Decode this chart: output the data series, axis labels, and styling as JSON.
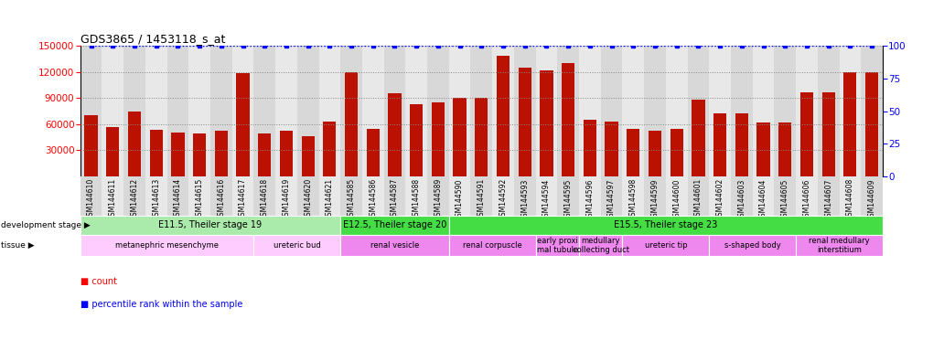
{
  "title": "GDS3865 / 1453118_s_at",
  "samples": [
    "GSM144610",
    "GSM144611",
    "GSM144612",
    "GSM144613",
    "GSM144614",
    "GSM144615",
    "GSM144616",
    "GSM144617",
    "GSM144618",
    "GSM144619",
    "GSM144620",
    "GSM144621",
    "GSM144585",
    "GSM144586",
    "GSM144587",
    "GSM144588",
    "GSM144589",
    "GSM144590",
    "GSM144591",
    "GSM144592",
    "GSM144593",
    "GSM144594",
    "GSM144595",
    "GSM144596",
    "GSM144597",
    "GSM144598",
    "GSM144599",
    "GSM144600",
    "GSM144601",
    "GSM144602",
    "GSM144603",
    "GSM144604",
    "GSM144605",
    "GSM144606",
    "GSM144607",
    "GSM144608",
    "GSM144609"
  ],
  "counts": [
    70000,
    57000,
    75000,
    53000,
    50000,
    49000,
    52000,
    118000,
    49000,
    52000,
    46000,
    63000,
    120000,
    55000,
    95000,
    83000,
    85000,
    90000,
    90000,
    138000,
    125000,
    122000,
    130000,
    65000,
    63000,
    55000,
    52000,
    55000,
    88000,
    72000,
    72000,
    62000,
    62000,
    97000,
    96000,
    120000,
    120000
  ],
  "ylim_left": [
    0,
    150000
  ],
  "ylim_right": [
    0,
    100
  ],
  "yticks_left": [
    30000,
    60000,
    90000,
    120000,
    150000
  ],
  "yticks_right": [
    0,
    25,
    50,
    75,
    100
  ],
  "bar_color": "#bb1100",
  "percentile_color": "#0000cc",
  "grid_color": "#888888",
  "dev_stages": [
    {
      "label": "E11.5, Theiler stage 19",
      "start": 0,
      "end": 11,
      "color": "#aaeaaa"
    },
    {
      "label": "E12.5, Theiler stage 20",
      "start": 12,
      "end": 16,
      "color": "#44dd44"
    },
    {
      "label": "E15.5, Theiler stage 23",
      "start": 17,
      "end": 36,
      "color": "#44dd44"
    }
  ],
  "tissues": [
    {
      "label": "metanephric mesenchyme",
      "start": 0,
      "end": 7,
      "color": "#ffccff"
    },
    {
      "label": "ureteric bud",
      "start": 8,
      "end": 11,
      "color": "#ffccff"
    },
    {
      "label": "renal vesicle",
      "start": 12,
      "end": 16,
      "color": "#ee88ee"
    },
    {
      "label": "renal corpuscle",
      "start": 17,
      "end": 20,
      "color": "#ee88ee"
    },
    {
      "label": "early proxi\nmal tubule",
      "start": 21,
      "end": 22,
      "color": "#ee88ee"
    },
    {
      "label": "medullary\ncollecting duct",
      "start": 23,
      "end": 24,
      "color": "#ee88ee"
    },
    {
      "label": "ureteric tip",
      "start": 25,
      "end": 28,
      "color": "#ee88ee"
    },
    {
      "label": "s-shaped body",
      "start": 29,
      "end": 32,
      "color": "#ee88ee"
    },
    {
      "label": "renal medullary\ninterstitium",
      "start": 33,
      "end": 36,
      "color": "#ee88ee"
    }
  ],
  "col_bg_even": "#d8d8d8",
  "col_bg_odd": "#e8e8e8",
  "bg_color": "#ffffff",
  "chart_bg": "#ffffff"
}
